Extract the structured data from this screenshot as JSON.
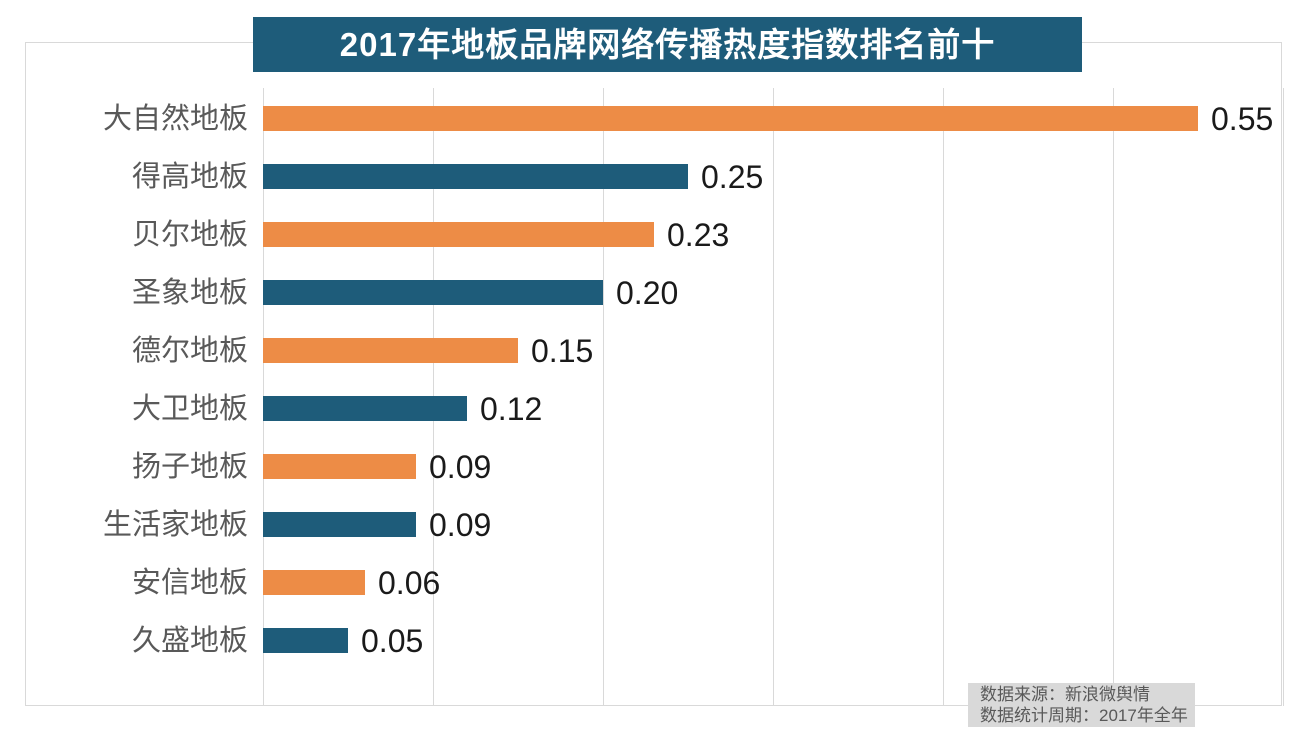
{
  "title": "2017年地板品牌网络传播热度指数排名前十",
  "source_note": {
    "line1": "数据来源：新浪微舆情",
    "line2": "数据统计周期：2017年全年"
  },
  "chart_data": {
    "type": "bar",
    "orientation": "horizontal",
    "title": "2017年地板品牌网络传播热度指数排名前十",
    "categories": [
      "大自然地板",
      "得高地板",
      "贝尔地板",
      "圣象地板",
      "德尔地板",
      "大卫地板",
      "扬子地板",
      "生活家地板",
      "安信地板",
      "久盛地板"
    ],
    "values": [
      0.55,
      0.25,
      0.23,
      0.2,
      0.15,
      0.12,
      0.09,
      0.09,
      0.06,
      0.05
    ],
    "value_labels": [
      "0.55",
      "0.25",
      "0.23",
      "0.20",
      "0.15",
      "0.12",
      "0.09",
      "0.09",
      "0.06",
      "0.05"
    ],
    "xlim": [
      0,
      0.6
    ],
    "gridline_step": 0.1,
    "grid": true,
    "legend": "none",
    "bar_colors_alternating": [
      "#ED8C46",
      "#1E5C7A"
    ]
  },
  "colors": {
    "title_bg": "#1E5C7A",
    "title_text": "#FFFFFF",
    "bar_orange": "#ED8C46",
    "bar_blue": "#1E5C7A",
    "category_label": "#595959",
    "value_label": "#1A1A1A",
    "gridline": "#D9D9D9",
    "frame_border": "#D9D9D9",
    "source_bg": "#D9D9D9",
    "source_text": "#595959"
  }
}
